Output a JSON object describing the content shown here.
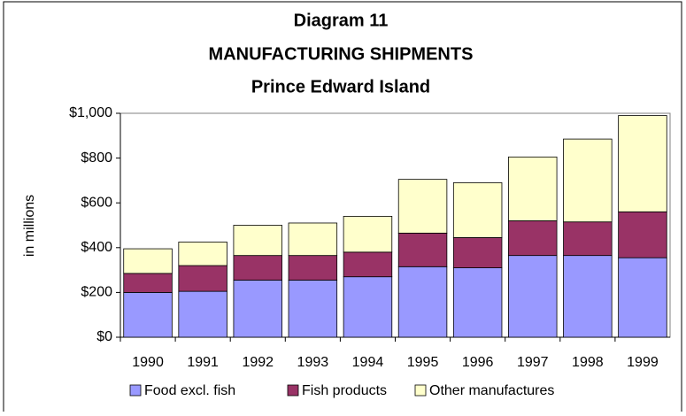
{
  "chart_data": {
    "type": "stacked_bar",
    "title": [
      "Diagram 11",
      "MANUFACTURING SHIPMENTS",
      "Prince Edward Island"
    ],
    "ylabel": "in millions",
    "categories": [
      "1990",
      "1991",
      "1992",
      "1993",
      "1994",
      "1995",
      "1996",
      "1997",
      "1998",
      "1999"
    ],
    "series": [
      {
        "name": "Food excl. fish",
        "color": "#9999ff",
        "values": [
          200,
          205,
          255,
          255,
          270,
          315,
          310,
          365,
          365,
          355
        ]
      },
      {
        "name": "Fish products",
        "color": "#993366",
        "values": [
          85,
          115,
          110,
          110,
          110,
          150,
          135,
          155,
          150,
          205
        ]
      },
      {
        "name": "Other manufactures",
        "color": "#ffffcc",
        "values": [
          110,
          105,
          135,
          145,
          160,
          240,
          245,
          285,
          370,
          430
        ]
      }
    ],
    "ylim": [
      0,
      1000
    ],
    "yticks": [
      {
        "value": 0,
        "label": "$0"
      },
      {
        "value": 200,
        "label": "$200"
      },
      {
        "value": 400,
        "label": "$400"
      },
      {
        "value": 600,
        "label": "$600"
      },
      {
        "value": 800,
        "label": "$800"
      },
      {
        "value": 1000,
        "label": "$1,000"
      }
    ],
    "legend": "bottom"
  }
}
